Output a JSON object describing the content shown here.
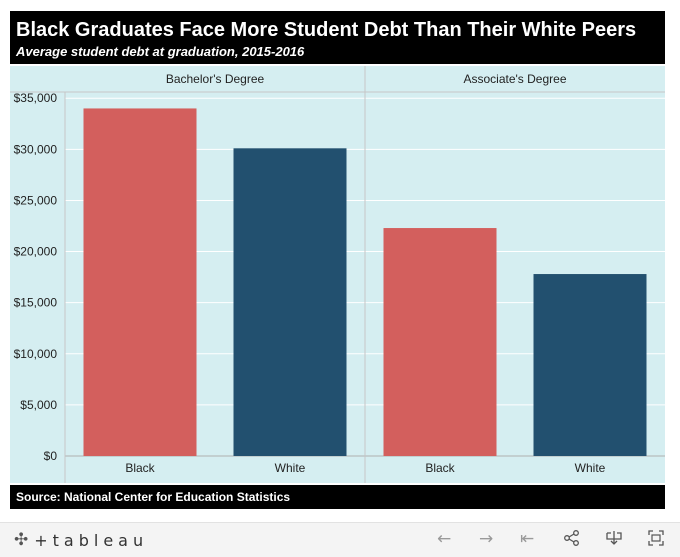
{
  "header": {
    "title": "Black Graduates Face More Student Debt Than Their White Peers",
    "subtitle": "Average student debt at graduation, 2015-2016"
  },
  "source": "Source: National Center for Education Statistics",
  "chart_data": {
    "type": "bar",
    "panels": [
      {
        "name": "Bachelor's Degree",
        "categories": [
          "Black",
          "White"
        ],
        "values": [
          34000,
          30100
        ]
      },
      {
        "name": "Associate's Degree",
        "categories": [
          "Black",
          "White"
        ],
        "values": [
          22300,
          17800
        ]
      }
    ],
    "y_ticks": [
      "$0",
      "$5,000",
      "$10,000",
      "$15,000",
      "$20,000",
      "$25,000",
      "$30,000",
      "$35,000"
    ],
    "ylim": [
      0,
      36000
    ],
    "grid": true,
    "colors": {
      "Black": "#d35f5d",
      "White": "#22506f",
      "background": "#d5eef1"
    }
  },
  "footer": {
    "logo": "+tableau",
    "icons": [
      "back-icon",
      "forward-icon",
      "revert-icon",
      "share-icon",
      "download-icon",
      "fullscreen-icon"
    ]
  }
}
